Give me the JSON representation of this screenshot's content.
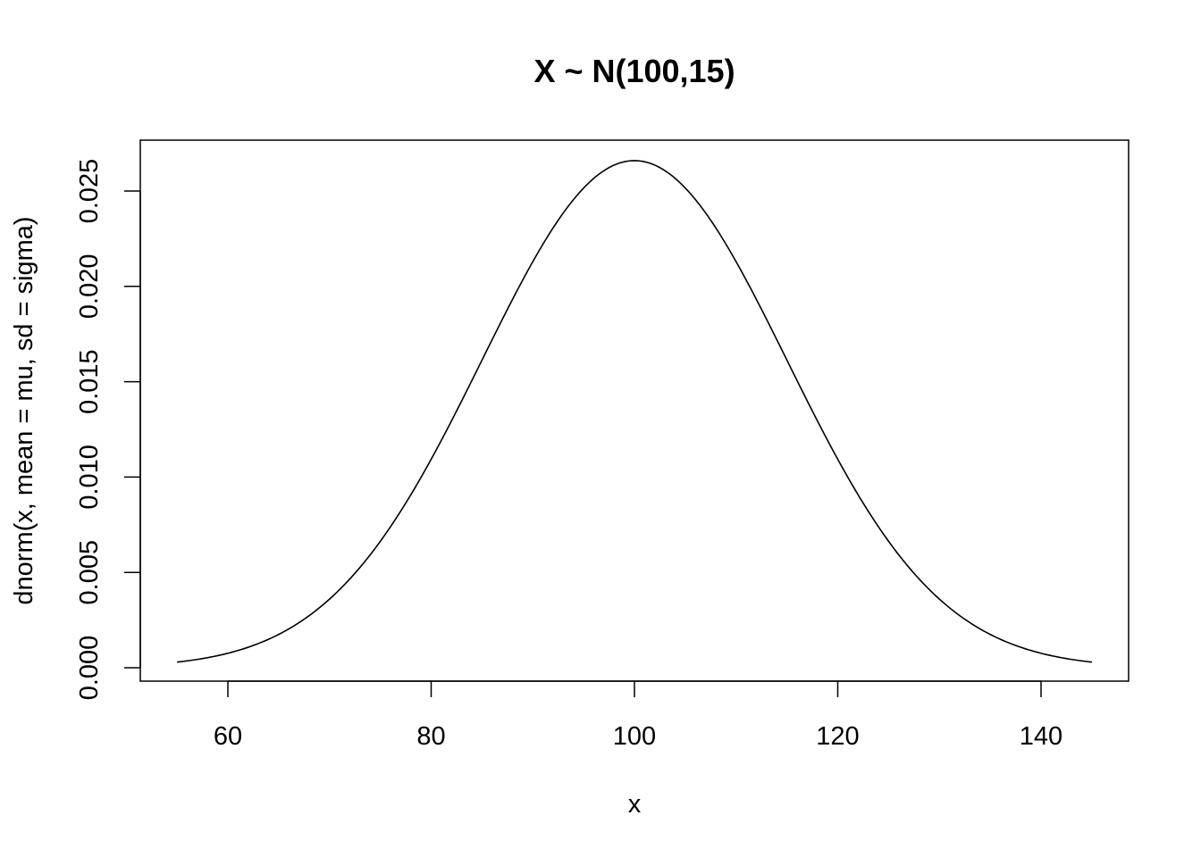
{
  "chart_data": {
    "type": "line",
    "title": "X ~ N(100,15)",
    "xlabel": "x",
    "ylabel": "dnorm(x, mean = mu, sd = sigma)",
    "xlim": [
      55,
      145
    ],
    "ylim": [
      0,
      0.0266
    ],
    "grid": false,
    "legend": "none",
    "x_ticks": [
      60,
      80,
      100,
      120,
      140
    ],
    "x_tick_labels": [
      "60",
      "80",
      "100",
      "120",
      "140"
    ],
    "y_ticks": [
      0,
      0.005,
      0.01,
      0.015,
      0.02,
      0.025
    ],
    "y_tick_labels": [
      "0.000",
      "0.005",
      "0.010",
      "0.015",
      "0.020",
      "0.025"
    ],
    "series": [
      {
        "distribution": "normal",
        "mean": 100,
        "sd": 15,
        "x_range": [
          55,
          145
        ],
        "x": [
          55,
          60,
          65,
          70,
          75,
          80,
          85,
          90,
          95,
          100,
          105,
          110,
          115,
          120,
          125,
          130,
          135,
          140,
          145
        ],
        "y": [
          0.000295,
          0.00076,
          0.001748,
          0.003599,
          0.006632,
          0.010934,
          0.016131,
          0.021297,
          0.025159,
          0.026596,
          0.025159,
          0.021297,
          0.016131,
          0.010934,
          0.006632,
          0.003599,
          0.001748,
          0.00076,
          0.000295
        ],
        "color": "#000000"
      }
    ]
  }
}
